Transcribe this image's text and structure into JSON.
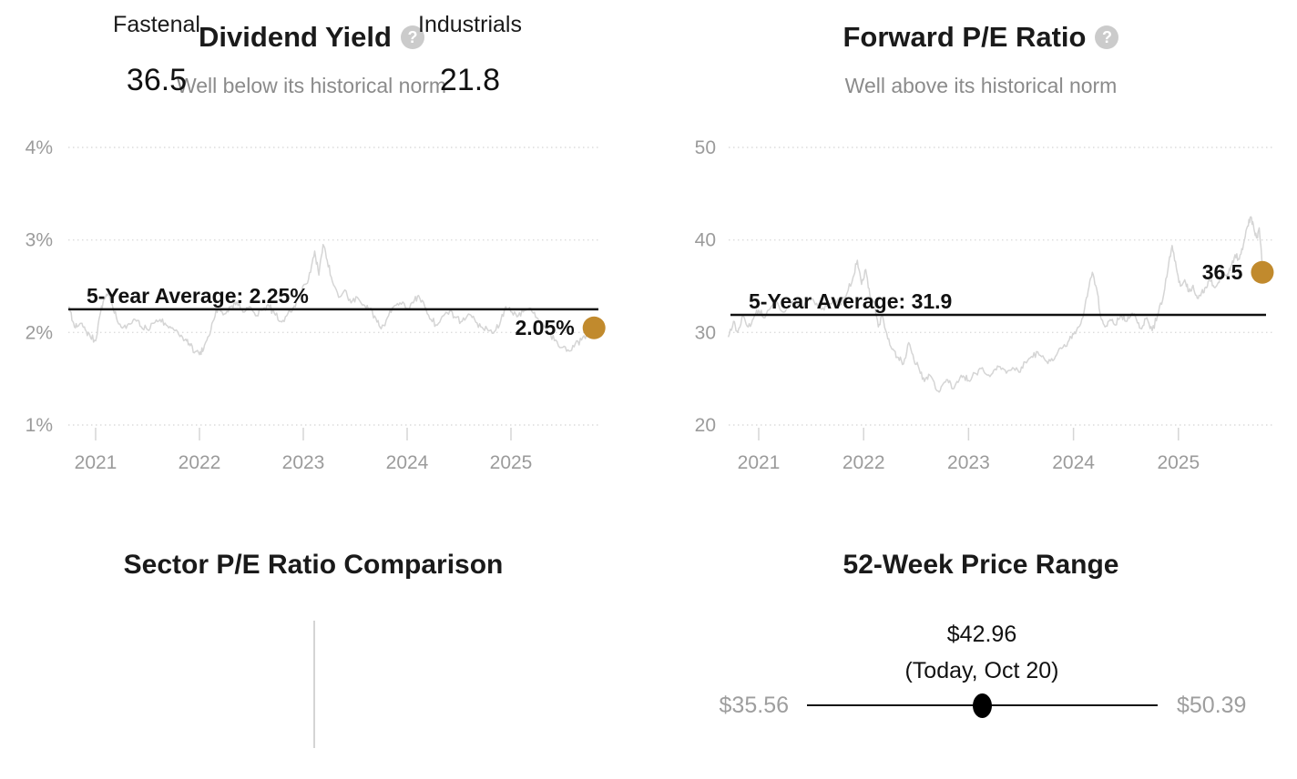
{
  "colors": {
    "accent_gold": "#C18A2D",
    "series_line": "#D5D5D5",
    "average_line": "#111111",
    "grid": "#DCDCDC",
    "axis_text": "#9B9B9B",
    "heading_text": "#1A1A1A",
    "muted_text": "#8B8B8B",
    "help_icon_bg": "#CBCBCB",
    "range_label_text": "#9E9E9E"
  },
  "chart_data": [
    {
      "id": "dividend-yield",
      "type": "line",
      "title": "Dividend Yield",
      "subtitle": "Well below its historical norm",
      "help_icon_glyph": "?",
      "grid": true,
      "legend": "none",
      "ylim": [
        1,
        4
      ],
      "xlim": [
        2020.74,
        2025.8
      ],
      "y_ticks": [
        {
          "value": 4,
          "label": "4%"
        },
        {
          "value": 3,
          "label": "3%"
        },
        {
          "value": 2,
          "label": "2%"
        },
        {
          "value": 1,
          "label": "1%"
        }
      ],
      "x_ticks": [
        {
          "value": 2021,
          "label": "2021"
        },
        {
          "value": 2022,
          "label": "2022"
        },
        {
          "value": 2023,
          "label": "2023"
        },
        {
          "value": 2024,
          "label": "2024"
        },
        {
          "value": 2025,
          "label": "2025"
        }
      ],
      "average": {
        "value": 2.25,
        "label": "5-Year Average: 2.25%"
      },
      "current": {
        "t": 2025.8,
        "value": 2.05,
        "label": "2.05%"
      },
      "series": {
        "name": "Dividend yield (approx. daily history)",
        "points": [
          [
            2020.74,
            2.28
          ],
          [
            2020.78,
            2.12
          ],
          [
            2020.82,
            2.06
          ],
          [
            2020.86,
            2.1
          ],
          [
            2020.9,
            2.03
          ],
          [
            2020.95,
            1.95
          ],
          [
            2021.0,
            1.91
          ],
          [
            2021.04,
            2.18
          ],
          [
            2021.08,
            2.36
          ],
          [
            2021.12,
            2.42
          ],
          [
            2021.16,
            2.3
          ],
          [
            2021.21,
            2.12
          ],
          [
            2021.27,
            2.06
          ],
          [
            2021.33,
            2.09
          ],
          [
            2021.38,
            2.14
          ],
          [
            2021.44,
            2.06
          ],
          [
            2021.5,
            2.03
          ],
          [
            2021.56,
            2.1
          ],
          [
            2021.62,
            2.14
          ],
          [
            2021.68,
            2.08
          ],
          [
            2021.74,
            2.05
          ],
          [
            2021.8,
            1.98
          ],
          [
            2021.86,
            1.92
          ],
          [
            2021.9,
            1.88
          ],
          [
            2021.95,
            1.78
          ],
          [
            2022.0,
            1.76
          ],
          [
            2022.04,
            1.82
          ],
          [
            2022.08,
            1.95
          ],
          [
            2022.13,
            2.12
          ],
          [
            2022.18,
            2.26
          ],
          [
            2022.24,
            2.2
          ],
          [
            2022.3,
            2.28
          ],
          [
            2022.36,
            2.33
          ],
          [
            2022.42,
            2.22
          ],
          [
            2022.48,
            2.28
          ],
          [
            2022.54,
            2.18
          ],
          [
            2022.6,
            2.24
          ],
          [
            2022.66,
            2.3
          ],
          [
            2022.72,
            2.21
          ],
          [
            2022.78,
            2.12
          ],
          [
            2022.84,
            2.18
          ],
          [
            2022.9,
            2.26
          ],
          [
            2022.96,
            2.4
          ],
          [
            2023.02,
            2.52
          ],
          [
            2023.07,
            2.65
          ],
          [
            2023.11,
            2.88
          ],
          [
            2023.15,
            2.62
          ],
          [
            2023.19,
            2.95
          ],
          [
            2023.23,
            2.78
          ],
          [
            2023.28,
            2.55
          ],
          [
            2023.34,
            2.38
          ],
          [
            2023.4,
            2.46
          ],
          [
            2023.46,
            2.32
          ],
          [
            2023.52,
            2.38
          ],
          [
            2023.58,
            2.3
          ],
          [
            2023.64,
            2.26
          ],
          [
            2023.7,
            2.15
          ],
          [
            2023.75,
            2.04
          ],
          [
            2023.81,
            2.16
          ],
          [
            2023.87,
            2.28
          ],
          [
            2023.93,
            2.32
          ],
          [
            2024.0,
            2.26
          ],
          [
            2024.06,
            2.32
          ],
          [
            2024.11,
            2.4
          ],
          [
            2024.17,
            2.28
          ],
          [
            2024.23,
            2.14
          ],
          [
            2024.29,
            2.08
          ],
          [
            2024.35,
            2.18
          ],
          [
            2024.41,
            2.23
          ],
          [
            2024.47,
            2.16
          ],
          [
            2024.53,
            2.12
          ],
          [
            2024.59,
            2.2
          ],
          [
            2024.65,
            2.14
          ],
          [
            2024.71,
            2.06
          ],
          [
            2024.77,
            2.04
          ],
          [
            2024.83,
            1.99
          ],
          [
            2024.89,
            2.08
          ],
          [
            2024.95,
            2.28
          ],
          [
            2025.01,
            2.22
          ],
          [
            2025.07,
            2.18
          ],
          [
            2025.13,
            2.24
          ],
          [
            2025.19,
            2.26
          ],
          [
            2025.25,
            2.16
          ],
          [
            2025.31,
            2.1
          ],
          [
            2025.37,
            1.98
          ],
          [
            2025.43,
            1.92
          ],
          [
            2025.5,
            1.84
          ],
          [
            2025.56,
            1.8
          ],
          [
            2025.62,
            1.88
          ],
          [
            2025.68,
            1.92
          ],
          [
            2025.74,
            1.97
          ],
          [
            2025.8,
            2.05
          ]
        ]
      }
    },
    {
      "id": "forward-pe",
      "type": "line",
      "title": "Forward P/E Ratio",
      "subtitle": "Well above its historical norm",
      "help_icon_glyph": "?",
      "grid": true,
      "legend": "none",
      "ylim": [
        20,
        50
      ],
      "xlim": [
        2020.71,
        2025.8
      ],
      "y_ticks": [
        {
          "value": 50,
          "label": "50"
        },
        {
          "value": 40,
          "label": "40"
        },
        {
          "value": 30,
          "label": "30"
        },
        {
          "value": 20,
          "label": "20"
        }
      ],
      "x_ticks": [
        {
          "value": 2021,
          "label": "2021"
        },
        {
          "value": 2022,
          "label": "2022"
        },
        {
          "value": 2023,
          "label": "2023"
        },
        {
          "value": 2024,
          "label": "2024"
        },
        {
          "value": 2025,
          "label": "2025"
        }
      ],
      "average": {
        "value": 31.9,
        "label": "5-Year Average: 31.9"
      },
      "current": {
        "t": 2025.8,
        "value": 36.5,
        "label": "36.5"
      },
      "series": {
        "name": "Forward P/E (approx. daily history)",
        "points": [
          [
            2020.71,
            29.5
          ],
          [
            2020.76,
            31.2
          ],
          [
            2020.8,
            30.0
          ],
          [
            2020.85,
            31.8
          ],
          [
            2020.9,
            30.6
          ],
          [
            2020.95,
            31.5
          ],
          [
            2021.0,
            32.4
          ],
          [
            2021.06,
            31.6
          ],
          [
            2021.12,
            32.8
          ],
          [
            2021.18,
            33.2
          ],
          [
            2021.24,
            32.2
          ],
          [
            2021.3,
            32.9
          ],
          [
            2021.36,
            33.4
          ],
          [
            2021.42,
            32.6
          ],
          [
            2021.48,
            33.6
          ],
          [
            2021.54,
            33.0
          ],
          [
            2021.6,
            32.5
          ],
          [
            2021.66,
            33.2
          ],
          [
            2021.72,
            33.6
          ],
          [
            2021.78,
            33.0
          ],
          [
            2021.84,
            34.2
          ],
          [
            2021.9,
            36.0
          ],
          [
            2021.94,
            37.8
          ],
          [
            2021.98,
            35.2
          ],
          [
            2022.02,
            36.8
          ],
          [
            2022.06,
            34.0
          ],
          [
            2022.1,
            33.4
          ],
          [
            2022.14,
            30.6
          ],
          [
            2022.18,
            31.8
          ],
          [
            2022.23,
            29.3
          ],
          [
            2022.28,
            28.2
          ],
          [
            2022.33,
            27.3
          ],
          [
            2022.38,
            26.6
          ],
          [
            2022.43,
            28.9
          ],
          [
            2022.48,
            27.0
          ],
          [
            2022.53,
            26.0
          ],
          [
            2022.58,
            24.7
          ],
          [
            2022.63,
            25.4
          ],
          [
            2022.7,
            23.7
          ],
          [
            2022.75,
            24.3
          ],
          [
            2022.8,
            24.9
          ],
          [
            2022.85,
            23.9
          ],
          [
            2022.9,
            24.6
          ],
          [
            2022.95,
            25.3
          ],
          [
            2023.0,
            24.8
          ],
          [
            2023.06,
            25.6
          ],
          [
            2023.12,
            26.1
          ],
          [
            2023.18,
            25.4
          ],
          [
            2023.24,
            25.9
          ],
          [
            2023.3,
            26.3
          ],
          [
            2023.36,
            25.6
          ],
          [
            2023.42,
            26.2
          ],
          [
            2023.48,
            25.7
          ],
          [
            2023.54,
            26.8
          ],
          [
            2023.6,
            27.4
          ],
          [
            2023.66,
            27.9
          ],
          [
            2023.72,
            27.2
          ],
          [
            2023.78,
            26.9
          ],
          [
            2023.84,
            27.6
          ],
          [
            2023.9,
            28.4
          ],
          [
            2023.96,
            29.2
          ],
          [
            2024.0,
            29.8
          ],
          [
            2024.05,
            30.6
          ],
          [
            2024.1,
            32.2
          ],
          [
            2024.14,
            34.5
          ],
          [
            2024.18,
            36.5
          ],
          [
            2024.22,
            34.8
          ],
          [
            2024.26,
            31.6
          ],
          [
            2024.3,
            30.6
          ],
          [
            2024.35,
            31.4
          ],
          [
            2024.4,
            30.8
          ],
          [
            2024.45,
            31.8
          ],
          [
            2024.5,
            31.2
          ],
          [
            2024.55,
            32.0
          ],
          [
            2024.6,
            31.4
          ],
          [
            2024.65,
            30.4
          ],
          [
            2024.7,
            31.6
          ],
          [
            2024.75,
            30.2
          ],
          [
            2024.8,
            31.8
          ],
          [
            2024.85,
            33.5
          ],
          [
            2024.9,
            36.8
          ],
          [
            2024.94,
            39.4
          ],
          [
            2024.98,
            37.0
          ],
          [
            2025.02,
            35.0
          ],
          [
            2025.06,
            35.7
          ],
          [
            2025.1,
            34.4
          ],
          [
            2025.14,
            35.1
          ],
          [
            2025.18,
            33.7
          ],
          [
            2025.22,
            34.3
          ],
          [
            2025.26,
            34.9
          ],
          [
            2025.3,
            35.6
          ],
          [
            2025.34,
            34.9
          ],
          [
            2025.38,
            35.4
          ],
          [
            2025.42,
            36.5
          ],
          [
            2025.46,
            36.1
          ],
          [
            2025.5,
            37.1
          ],
          [
            2025.54,
            38.4
          ],
          [
            2025.58,
            37.9
          ],
          [
            2025.62,
            39.5
          ],
          [
            2025.66,
            41.5
          ],
          [
            2025.69,
            42.5
          ],
          [
            2025.72,
            41.2
          ],
          [
            2025.75,
            40.2
          ],
          [
            2025.77,
            41.3
          ],
          [
            2025.79,
            38.8
          ],
          [
            2025.8,
            36.5
          ]
        ]
      }
    }
  ],
  "sector_comparison": {
    "title": "Sector P/E Ratio Comparison",
    "items": [
      {
        "label": "Fastenal",
        "value": "36.5"
      },
      {
        "label": "Industrials",
        "value": "21.8"
      }
    ]
  },
  "price_range": {
    "title": "52-Week Price Range",
    "current_price_label": "$42.96",
    "current_date_label": "(Today, Oct 20)",
    "low_label": "$35.56",
    "high_label": "$50.39",
    "low": 35.56,
    "high": 50.39,
    "current": 42.96
  }
}
